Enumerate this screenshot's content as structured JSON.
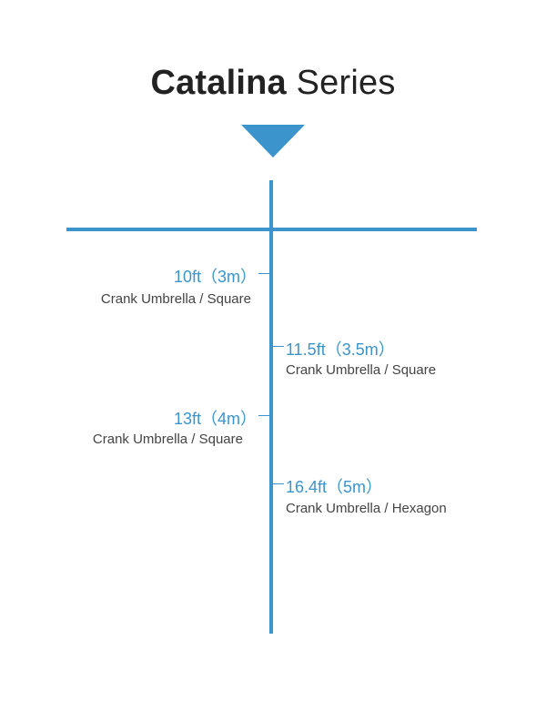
{
  "title": {
    "bold": "Catalina",
    "light": " Series"
  },
  "colors": {
    "accent": "#3b94cc",
    "text": "#444444",
    "title": "#222222"
  },
  "items": [
    {
      "size": "10ft（3m）",
      "description": "Crank Umbrella / Square",
      "side": "left"
    },
    {
      "size": "11.5ft（3.5m）",
      "description": "Crank Umbrella / Square",
      "side": "right"
    },
    {
      "size": "13ft（4m）",
      "description": "Crank Umbrella / Square",
      "side": "left"
    },
    {
      "size": "16.4ft（5m）",
      "description": "Crank Umbrella / Hexagon",
      "side": "right"
    }
  ]
}
